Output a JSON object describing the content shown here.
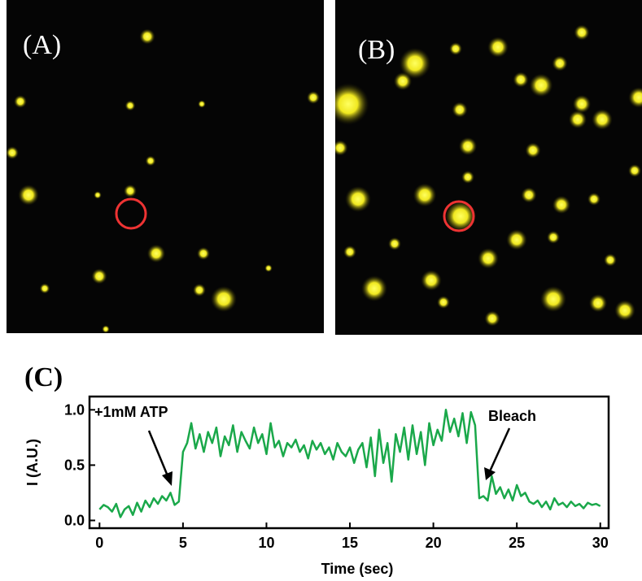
{
  "panels": [
    {
      "label": "(A)"
    },
    {
      "label": "(B)"
    },
    {
      "label": "(C)"
    }
  ],
  "chart_data": {
    "type": "line",
    "x_label": "Time (sec)",
    "y_label": "I (A.U.)",
    "annotations": [
      "+1mM ATP",
      "Bleach"
    ],
    "x": [
      0,
      0.25,
      0.5,
      0.75,
      1,
      1.25,
      1.5,
      1.75,
      2,
      2.25,
      2.5,
      2.75,
      3,
      3.25,
      3.5,
      3.75,
      4,
      4.25,
      4.5,
      4.75,
      5,
      5.25,
      5.5,
      5.75,
      6,
      6.25,
      6.5,
      6.75,
      7,
      7.25,
      7.5,
      7.75,
      8,
      8.25,
      8.5,
      8.75,
      9,
      9.25,
      9.5,
      9.75,
      10,
      10.25,
      10.5,
      10.75,
      11,
      11.25,
      11.5,
      11.75,
      12,
      12.25,
      12.5,
      12.75,
      13,
      13.25,
      13.5,
      13.75,
      14,
      14.25,
      14.5,
      14.75,
      15,
      15.25,
      15.5,
      15.75,
      16,
      16.25,
      16.5,
      16.75,
      17,
      17.25,
      17.5,
      17.75,
      18,
      18.25,
      18.5,
      18.75,
      19,
      19.25,
      19.5,
      19.75,
      20,
      20.25,
      20.5,
      20.75,
      21,
      21.25,
      21.5,
      21.75,
      22,
      22.25,
      22.5,
      22.75,
      23,
      23.25,
      23.5,
      23.75,
      24,
      24.25,
      24.5,
      24.75,
      25,
      25.25,
      25.5,
      25.75,
      26,
      26.25,
      26.5,
      26.75,
      27,
      27.25,
      27.5,
      27.75,
      28,
      28.25,
      28.5,
      28.75,
      29,
      29.25,
      29.5,
      29.75,
      30
    ],
    "series": [
      {
        "color": "#1aa84a",
        "values": [
          0.1,
          0.14,
          0.12,
          0.08,
          0.15,
          0.03,
          0.1,
          0.13,
          0.05,
          0.16,
          0.08,
          0.18,
          0.12,
          0.2,
          0.15,
          0.22,
          0.18,
          0.25,
          0.14,
          0.17,
          0.62,
          0.7,
          0.88,
          0.65,
          0.78,
          0.62,
          0.8,
          0.7,
          0.84,
          0.58,
          0.76,
          0.68,
          0.86,
          0.62,
          0.8,
          0.72,
          0.65,
          0.84,
          0.7,
          0.78,
          0.6,
          0.88,
          0.66,
          0.72,
          0.58,
          0.7,
          0.66,
          0.73,
          0.62,
          0.68,
          0.56,
          0.72,
          0.64,
          0.7,
          0.6,
          0.66,
          0.55,
          0.7,
          0.62,
          0.58,
          0.66,
          0.52,
          0.64,
          0.7,
          0.48,
          0.75,
          0.4,
          0.82,
          0.52,
          0.7,
          0.35,
          0.78,
          0.62,
          0.84,
          0.55,
          0.86,
          0.6,
          0.8,
          0.5,
          0.88,
          0.68,
          0.82,
          0.72,
          1.0,
          0.8,
          0.92,
          0.76,
          0.97,
          0.7,
          0.98,
          0.86,
          0.2,
          0.22,
          0.18,
          0.4,
          0.24,
          0.3,
          0.2,
          0.28,
          0.18,
          0.32,
          0.22,
          0.25,
          0.17,
          0.15,
          0.18,
          0.12,
          0.17,
          0.1,
          0.2,
          0.14,
          0.16,
          0.12,
          0.17,
          0.13,
          0.15,
          0.11,
          0.16,
          0.14,
          0.15,
          0.13
        ]
      }
    ],
    "xlim": [
      -0.6,
      30.5
    ],
    "ylim": [
      -0.07,
      1.12
    ],
    "xticks": [
      0,
      5,
      10,
      15,
      20,
      25,
      30
    ],
    "yticks": [
      {
        "value": 0,
        "label": "0.0"
      },
      {
        "value": 0.5,
        "label": "0.5"
      },
      {
        "value": 1,
        "label": "1.0"
      }
    ]
  }
}
